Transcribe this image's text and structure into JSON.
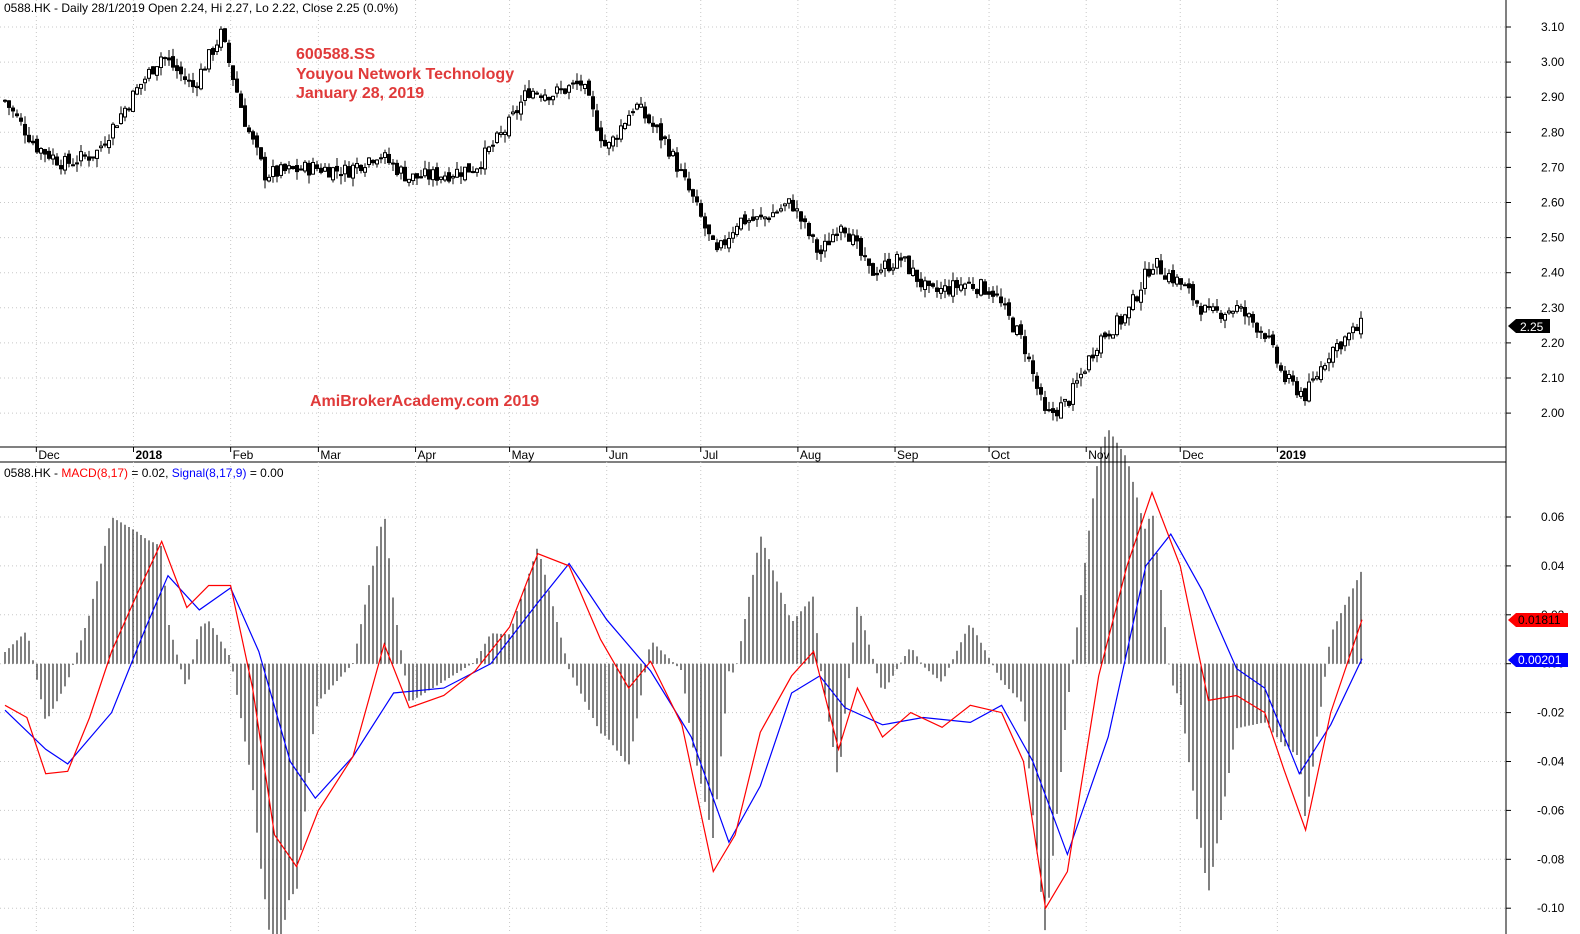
{
  "price_pane": {
    "header": {
      "symbol": "0588.HK",
      "info": " - Daily 28/1/2019 Open 2.24, Hi 2.27, Lo 2.22, Close 2.25 (0.0%)"
    },
    "overlay": {
      "line1": "600588.SS",
      "line2": "Youyou Network Technology",
      "line3": "January 28, 2019"
    },
    "watermark": "AmiBrokerAcademy.com  2019",
    "last_price_label": "2.25",
    "y_ticks": [
      "3.10",
      "3.00",
      "2.90",
      "2.80",
      "2.70",
      "2.60",
      "2.50",
      "2.40",
      "2.30",
      "2.20",
      "2.10",
      "2.00"
    ]
  },
  "macd_pane": {
    "header": {
      "symbol": "0588.HK",
      "sep": " - ",
      "macd_label": "MACD(8,17)",
      "macd_value": " = 0.02, ",
      "signal_label": "Signal(8,17,9)",
      "signal_value": " = 0.00"
    },
    "macd_last_label": "0.01811",
    "signal_last_label": "0.00201",
    "y_ticks": [
      "0.06",
      "0.04",
      "0.02",
      "0.00",
      "-0.02",
      "-0.04",
      "-0.06",
      "-0.08",
      "-0.10"
    ]
  },
  "x_axis": {
    "months": [
      "Dec",
      "2018",
      "Feb",
      "Mar",
      "Apr",
      "May",
      "Jun",
      "Jul",
      "Aug",
      "Sep",
      "Oct",
      "Nov",
      "Dec",
      "2019"
    ]
  },
  "colors": {
    "macd": "#ff0000",
    "signal": "#0000ff",
    "histogram": "#000000",
    "candle": "#000000",
    "label_red_bg": "#ff0000",
    "label_blue_bg": "#0000ff"
  },
  "chart_data": [
    {
      "type": "candlestick",
      "title": "0588.HK - Daily 28/1/2019 Open 2.24, Hi 2.27, Lo 2.22, Close 2.25 (0.0%)",
      "ylim": [
        1.9,
        3.12
      ],
      "x": [
        "2017-12",
        "2018-01",
        "2018-02",
        "2018-03",
        "2018-04",
        "2018-05",
        "2018-06",
        "2018-07",
        "2018-08",
        "2018-09",
        "2018-10",
        "2018-11",
        "2018-12",
        "2019-01"
      ],
      "close_path": [
        [
          "2017-11-21",
          2.89
        ],
        [
          "2017-12-01",
          2.76
        ],
        [
          "2017-12-10",
          2.71
        ],
        [
          "2017-12-20",
          2.74
        ],
        [
          "2018-01-02",
          2.92
        ],
        [
          "2018-01-10",
          3.02
        ],
        [
          "2018-01-20",
          2.93
        ],
        [
          "2018-01-29",
          3.08
        ],
        [
          "2018-02-06",
          2.82
        ],
        [
          "2018-02-12",
          2.68
        ],
        [
          "2018-02-27",
          2.7
        ],
        [
          "2018-03-10",
          2.69
        ],
        [
          "2018-03-20",
          2.74
        ],
        [
          "2018-03-30",
          2.67
        ],
        [
          "2018-04-10",
          2.68
        ],
        [
          "2018-04-20",
          2.7
        ],
        [
          "2018-04-30",
          2.81
        ],
        [
          "2018-05-07",
          2.92
        ],
        [
          "2018-05-15",
          2.91
        ],
        [
          "2018-05-24",
          2.94
        ],
        [
          "2018-06-01",
          2.75
        ],
        [
          "2018-06-10",
          2.88
        ],
        [
          "2018-06-20",
          2.77
        ],
        [
          "2018-06-29",
          2.6
        ],
        [
          "2018-07-06",
          2.45
        ],
        [
          "2018-07-13",
          2.55
        ],
        [
          "2018-07-20",
          2.55
        ],
        [
          "2018-07-30",
          2.6
        ],
        [
          "2018-08-08",
          2.45
        ],
        [
          "2018-08-15",
          2.55
        ],
        [
          "2018-08-24",
          2.4
        ],
        [
          "2018-09-03",
          2.44
        ],
        [
          "2018-09-12",
          2.34
        ],
        [
          "2018-09-24",
          2.37
        ],
        [
          "2018-10-02",
          2.35
        ],
        [
          "2018-10-12",
          2.2
        ],
        [
          "2018-10-19",
          1.99
        ],
        [
          "2018-10-26",
          2.03
        ],
        [
          "2018-11-05",
          2.21
        ],
        [
          "2018-11-14",
          2.28
        ],
        [
          "2018-11-22",
          2.43
        ],
        [
          "2018-12-01",
          2.37
        ],
        [
          "2018-12-10",
          2.28
        ],
        [
          "2018-12-19",
          2.3
        ],
        [
          "2018-12-28",
          2.23
        ],
        [
          "2019-01-03",
          2.1
        ],
        [
          "2019-01-10",
          2.05
        ],
        [
          "2019-01-18",
          2.18
        ],
        [
          "2019-01-28",
          2.25
        ]
      ],
      "last_close": 2.25
    },
    {
      "type": "line",
      "title": "MACD(8,17) = 0.02, Signal(8,17,9) = 0.00",
      "ylim": [
        -0.11,
        0.075
      ],
      "series": [
        {
          "name": "MACD(8,17)",
          "points": [
            [
              "2017-11-21",
              -0.017
            ],
            [
              "2017-11-28",
              -0.022
            ],
            [
              "2017-12-04",
              -0.045
            ],
            [
              "2017-12-11",
              -0.044
            ],
            [
              "2017-12-18",
              -0.022
            ],
            [
              "2017-12-25",
              0.005
            ],
            [
              "2018-01-02",
              0.028
            ],
            [
              "2018-01-10",
              0.05
            ],
            [
              "2018-01-18",
              0.023
            ],
            [
              "2018-01-25",
              0.032
            ],
            [
              "2018-02-01",
              0.032
            ],
            [
              "2018-02-08",
              -0.01
            ],
            [
              "2018-02-15",
              -0.07
            ],
            [
              "2018-02-22",
              -0.083
            ],
            [
              "2018-03-01",
              -0.06
            ],
            [
              "2018-03-12",
              -0.038
            ],
            [
              "2018-03-22",
              0.008
            ],
            [
              "2018-03-30",
              -0.018
            ],
            [
              "2018-04-10",
              -0.013
            ],
            [
              "2018-04-20",
              -0.003
            ],
            [
              "2018-05-01",
              0.015
            ],
            [
              "2018-05-10",
              0.045
            ],
            [
              "2018-05-20",
              0.04
            ],
            [
              "2018-05-30",
              0.01
            ],
            [
              "2018-06-08",
              -0.01
            ],
            [
              "2018-06-15",
              0.001
            ],
            [
              "2018-06-25",
              -0.025
            ],
            [
              "2018-07-05",
              -0.085
            ],
            [
              "2018-07-12",
              -0.07
            ],
            [
              "2018-07-20",
              -0.028
            ],
            [
              "2018-07-30",
              -0.005
            ],
            [
              "2018-08-06",
              0.005
            ],
            [
              "2018-08-14",
              -0.035
            ],
            [
              "2018-08-20",
              -0.01
            ],
            [
              "2018-08-28",
              -0.03
            ],
            [
              "2018-09-06",
              -0.02
            ],
            [
              "2018-09-16",
              -0.026
            ],
            [
              "2018-09-25",
              -0.017
            ],
            [
              "2018-10-05",
              -0.02
            ],
            [
              "2018-10-12",
              -0.04
            ],
            [
              "2018-10-19",
              -0.1
            ],
            [
              "2018-10-26",
              -0.085
            ],
            [
              "2018-11-05",
              -0.005
            ],
            [
              "2018-11-14",
              0.04
            ],
            [
              "2018-11-22",
              0.07
            ],
            [
              "2018-12-01",
              0.04
            ],
            [
              "2018-12-10",
              -0.015
            ],
            [
              "2018-12-19",
              -0.013
            ],
            [
              "2018-12-28",
              -0.02
            ],
            [
              "2019-01-03",
              -0.043
            ],
            [
              "2019-01-10",
              -0.068
            ],
            [
              "2019-01-18",
              -0.02
            ],
            [
              "2019-01-28",
              0.018
            ]
          ]
        },
        {
          "name": "Signal(8,17,9)",
          "points": [
            [
              "2017-11-21",
              -0.019
            ],
            [
              "2017-12-04",
              -0.035
            ],
            [
              "2017-12-11",
              -0.041
            ],
            [
              "2017-12-25",
              -0.02
            ],
            [
              "2018-01-05",
              0.015
            ],
            [
              "2018-01-12",
              0.036
            ],
            [
              "2018-01-22",
              0.022
            ],
            [
              "2018-02-01",
              0.031
            ],
            [
              "2018-02-10",
              0.005
            ],
            [
              "2018-02-20",
              -0.04
            ],
            [
              "2018-02-28",
              -0.055
            ],
            [
              "2018-03-12",
              -0.038
            ],
            [
              "2018-03-25",
              -0.012
            ],
            [
              "2018-04-10",
              -0.01
            ],
            [
              "2018-04-25",
              0.0
            ],
            [
              "2018-05-10",
              0.025
            ],
            [
              "2018-05-20",
              0.041
            ],
            [
              "2018-06-01",
              0.018
            ],
            [
              "2018-06-15",
              -0.003
            ],
            [
              "2018-06-28",
              -0.03
            ],
            [
              "2018-07-10",
              -0.073
            ],
            [
              "2018-07-20",
              -0.05
            ],
            [
              "2018-07-30",
              -0.012
            ],
            [
              "2018-08-08",
              -0.005
            ],
            [
              "2018-08-16",
              -0.018
            ],
            [
              "2018-08-28",
              -0.025
            ],
            [
              "2018-09-10",
              -0.022
            ],
            [
              "2018-09-25",
              -0.024
            ],
            [
              "2018-10-05",
              -0.017
            ],
            [
              "2018-10-15",
              -0.04
            ],
            [
              "2018-10-26",
              -0.078
            ],
            [
              "2018-11-08",
              -0.03
            ],
            [
              "2018-11-20",
              0.04
            ],
            [
              "2018-11-28",
              0.053
            ],
            [
              "2018-12-08",
              0.03
            ],
            [
              "2018-12-19",
              -0.002
            ],
            [
              "2018-12-28",
              -0.01
            ],
            [
              "2019-01-08",
              -0.045
            ],
            [
              "2019-01-18",
              -0.025
            ],
            [
              "2019-01-28",
              0.002
            ]
          ]
        }
      ],
      "histogram": "MACD minus Signal",
      "macd_last": 0.01811,
      "signal_last": 0.00201
    }
  ]
}
